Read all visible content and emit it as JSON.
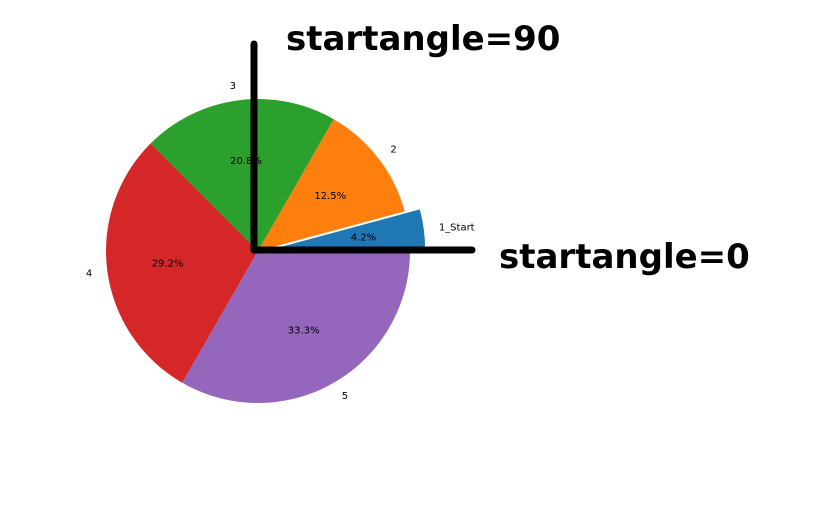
{
  "chart_data": {
    "type": "pie",
    "labels": [
      "1_Start",
      "2",
      "3",
      "4",
      "5"
    ],
    "values": [
      4.2,
      12.5,
      20.8,
      29.2,
      33.3
    ],
    "percent_labels": [
      "4.2%",
      "12.5%",
      "20.8%",
      "29.2%",
      "33.3%"
    ],
    "colors": [
      "#1f77b4",
      "#ff7f0e",
      "#2ca02c",
      "#d62728",
      "#9467bd"
    ],
    "explode": [
      0.1,
      0,
      0,
      0,
      0
    ],
    "startangle": 0,
    "counterclock": true,
    "annotations": {
      "vertical_axis_label": "startangle=90",
      "horizontal_axis_label": "startangle=0"
    }
  }
}
